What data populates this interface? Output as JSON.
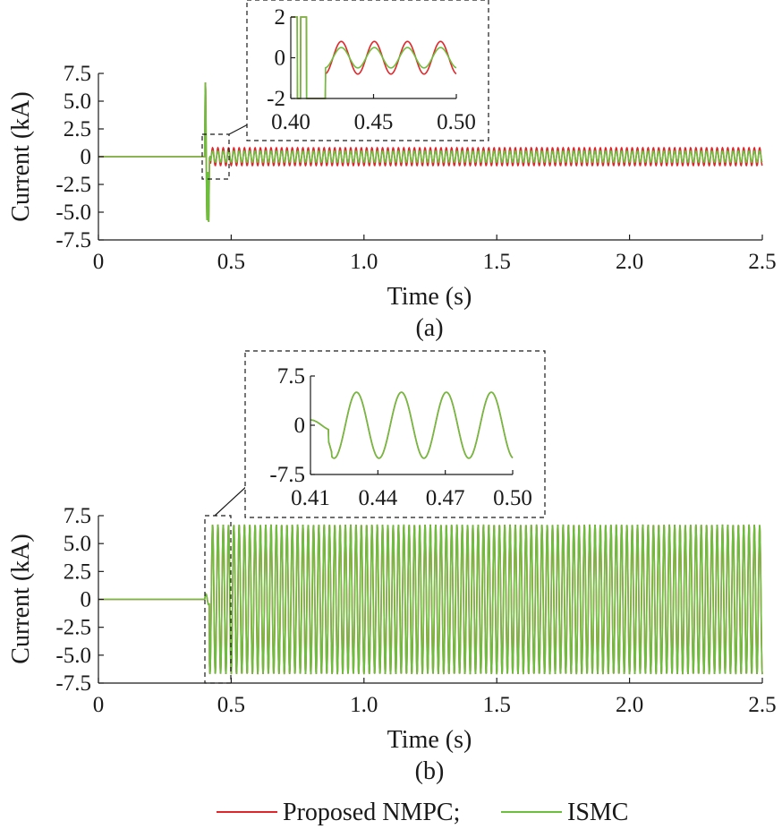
{
  "colors": {
    "nmpc": "#e0262b",
    "ismc": "#6cbf3c",
    "axis": "#1a1a1a"
  },
  "legend": {
    "nmpc_label": "Proposed NMPC;",
    "ismc_label": "ISMC"
  },
  "chart_data": [
    {
      "id": "a",
      "type": "line",
      "panel_label": "(a)",
      "xlabel": "Time (s)",
      "ylabel": "Current (kA)",
      "xlim": [
        0,
        2.5
      ],
      "ylim": [
        -7.5,
        7.5
      ],
      "xticks": [
        0,
        0.5,
        1.0,
        1.5,
        2.0,
        2.5
      ],
      "xtick_labels": [
        "0",
        "0.5",
        "1.0",
        "1.5",
        "2.0",
        "2.5"
      ],
      "yticks": [
        7.5,
        5.0,
        2.5,
        0,
        -2.5,
        -5.0,
        -7.5
      ],
      "ytick_labels": [
        "7.5",
        "5.0",
        "2.5",
        "0",
        "-2.5",
        "-5.0",
        "-7.5"
      ],
      "grid": false,
      "fault_time": 0.4,
      "series": [
        {
          "name": "Proposed NMPC",
          "color": "#e0262b",
          "pre_fault": 0,
          "transient_peaks": [
            6.7,
            -5.8,
            -6.0
          ],
          "steady_amplitude": 0.8,
          "frequency_hz": 50,
          "t_end": 2.5
        },
        {
          "name": "ISMC",
          "color": "#6cbf3c",
          "pre_fault": 0,
          "transient_peaks": [
            6.7,
            -5.8,
            -6.0
          ],
          "steady_amplitude": 0.5,
          "frequency_hz": 50,
          "t_end": 2.5
        }
      ],
      "inset": {
        "xlim": [
          0.4,
          0.5
        ],
        "ylim": [
          -2,
          2
        ],
        "xticks": [
          0.4,
          0.45,
          0.5
        ],
        "xtick_labels": [
          "0.40",
          "0.45",
          "0.50"
        ],
        "yticks": [
          2,
          0,
          -2
        ],
        "ytick_labels": [
          "2",
          "0",
          "-2"
        ],
        "zoom_box_x": [
          0.4,
          0.5
        ],
        "zoom_box_y": [
          -2,
          2
        ]
      }
    },
    {
      "id": "b",
      "type": "line",
      "panel_label": "(b)",
      "xlabel": "Time (s)",
      "ylabel": "Current (kA)",
      "xlim": [
        0,
        2.5
      ],
      "ylim": [
        -7.5,
        7.5
      ],
      "xticks": [
        0,
        0.5,
        1.0,
        1.5,
        2.0,
        2.5
      ],
      "xtick_labels": [
        "0",
        "0.5",
        "1.0",
        "1.5",
        "2.0",
        "2.5"
      ],
      "yticks": [
        7.5,
        5.0,
        2.5,
        0,
        -2.5,
        -5.0,
        -7.5
      ],
      "ytick_labels": [
        "7.5",
        "5.0",
        "2.5",
        "0",
        "-2.5",
        "-5.0",
        "-7.5"
      ],
      "grid": false,
      "fault_time": 0.4,
      "series": [
        {
          "name": "Proposed NMPC",
          "color": "#e0262b",
          "pre_fault": 0,
          "steady_amplitude": 6.7,
          "frequency_hz": 50,
          "t_end": 2.5
        },
        {
          "name": "ISMC",
          "color": "#6cbf3c",
          "pre_fault": 0,
          "steady_amplitude": 6.7,
          "frequency_hz": 50,
          "t_end": 2.5
        }
      ],
      "inset": {
        "xlim": [
          0.41,
          0.5
        ],
        "ylim": [
          -7.5,
          7.5
        ],
        "xticks": [
          0.41,
          0.44,
          0.47,
          0.5
        ],
        "xtick_labels": [
          "0.41",
          "0.44",
          "0.47",
          "0.50"
        ],
        "yticks": [
          7.5,
          0,
          -7.5
        ],
        "ytick_labels": [
          "7.5",
          "0",
          "-7.5"
        ],
        "zoom_box_x": [
          0.4,
          0.5
        ],
        "zoom_box_y": [
          -7.5,
          7.5
        ]
      }
    }
  ]
}
